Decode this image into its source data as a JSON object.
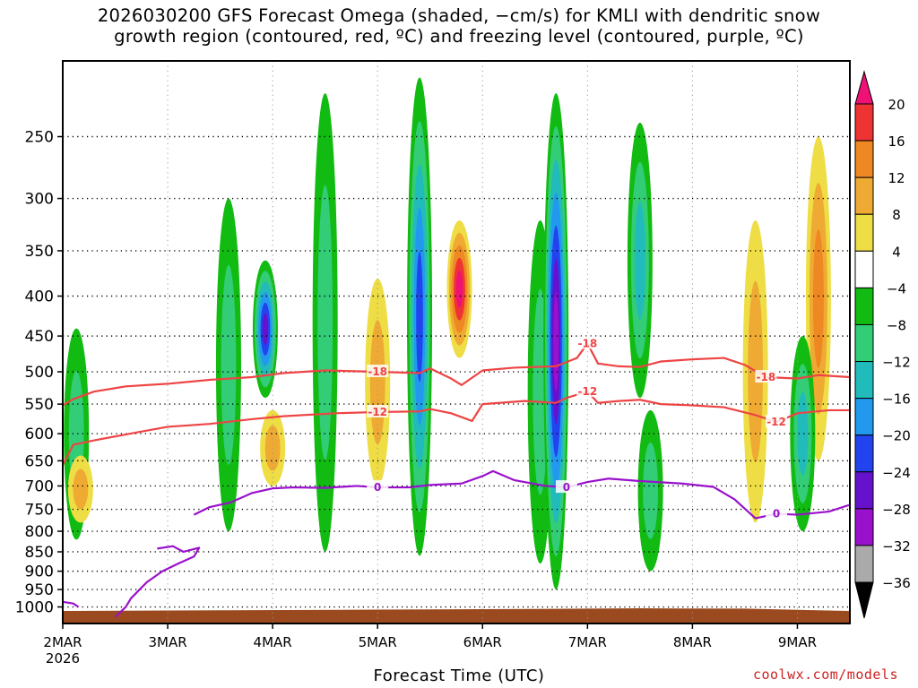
{
  "title_line1": "2026030200 GFS Forecast Omega (shaded, −cm/s) for KMLI with dendritic snow",
  "title_line2": "growth region (contoured, red, ºC) and freezing level (contoured, purple, ºC)",
  "xlabel": "Forecast Time (UTC)",
  "credit": "coolwx.com/models",
  "chart_data": {
    "type": "heatmap",
    "title": "2026030200 GFS Forecast Omega (shaded, −cm/s) for KMLI with dendritic snow growth region (contoured, red, ºC) and freezing level (contoured, purple, ºC)",
    "xlabel": "Forecast Time (UTC)",
    "ylabel": "",
    "x_ticks": [
      "2MAR",
      "3MAR",
      "4MAR",
      "5MAR",
      "6MAR",
      "7MAR",
      "8MAR",
      "9MAR"
    ],
    "x_tick_year": "2026",
    "x_range_days": [
      0,
      7.5
    ],
    "y_ticks": [
      250,
      300,
      350,
      400,
      450,
      500,
      550,
      600,
      650,
      700,
      750,
      800,
      850,
      900,
      950,
      1000
    ],
    "y_range_hpa": [
      1050,
      200
    ],
    "grid": true,
    "colorbar": {
      "labels": [
        "20",
        "16",
        "12",
        "8",
        "4",
        "−4",
        "−8",
        "−12",
        "−16",
        "−20",
        "−24",
        "−28",
        "−32",
        "−36"
      ],
      "colors": [
        "#ee1177",
        "#ee3333",
        "#ee8822",
        "#eeaa33",
        "#eedd44",
        "#ffffff",
        "#11bb11",
        "#33cc77",
        "#22bbbb",
        "#2299ee",
        "#2244ee",
        "#6611cc",
        "#9911cc",
        "#aaaaaa",
        "#000000"
      ]
    },
    "contour_colors": {
      "dgz": "#ee4444",
      "freezing": "#9911cc",
      "terrain": "#9a4a1e"
    },
    "contours": [
      {
        "label": "-18",
        "color": "dgz",
        "points": [
          [
            0,
            552
          ],
          [
            0.1,
            542
          ],
          [
            0.3,
            530
          ],
          [
            0.6,
            522
          ],
          [
            1.0,
            518
          ],
          [
            1.4,
            512
          ],
          [
            1.8,
            508
          ],
          [
            2.1,
            502
          ],
          [
            2.5,
            498
          ],
          [
            3.0,
            500
          ],
          [
            3.4,
            502
          ],
          [
            3.5,
            495
          ],
          [
            3.7,
            510
          ],
          [
            3.8,
            520
          ],
          [
            4.0,
            498
          ],
          [
            4.3,
            494
          ],
          [
            4.7,
            492
          ],
          [
            4.9,
            480
          ],
          [
            5.0,
            460
          ],
          [
            5.1,
            488
          ],
          [
            5.3,
            492
          ],
          [
            5.5,
            493
          ],
          [
            5.7,
            485
          ],
          [
            6.0,
            482
          ],
          [
            6.3,
            480
          ],
          [
            6.5,
            490
          ],
          [
            6.7,
            508
          ],
          [
            7.0,
            510
          ],
          [
            7.2,
            505
          ],
          [
            7.5,
            508
          ]
        ]
      },
      {
        "label": "-12",
        "color": "dgz",
        "points": [
          [
            0,
            658
          ],
          [
            0.1,
            620
          ],
          [
            0.3,
            612
          ],
          [
            0.7,
            598
          ],
          [
            1.0,
            588
          ],
          [
            1.4,
            583
          ],
          [
            1.8,
            575
          ],
          [
            2.1,
            570
          ],
          [
            2.6,
            565
          ],
          [
            3.0,
            563
          ],
          [
            3.4,
            562
          ],
          [
            3.5,
            558
          ],
          [
            3.7,
            565
          ],
          [
            3.9,
            578
          ],
          [
            4.0,
            550
          ],
          [
            4.4,
            545
          ],
          [
            4.7,
            548
          ],
          [
            4.8,
            540
          ],
          [
            5.0,
            530
          ],
          [
            5.1,
            548
          ],
          [
            5.3,
            545
          ],
          [
            5.5,
            543
          ],
          [
            5.7,
            550
          ],
          [
            6.0,
            552
          ],
          [
            6.3,
            555
          ],
          [
            6.6,
            568
          ],
          [
            6.8,
            580
          ],
          [
            7.0,
            565
          ],
          [
            7.3,
            560
          ],
          [
            7.5,
            560
          ]
        ]
      },
      {
        "label": "0",
        "color": "freezing",
        "points": [
          [
            1.25,
            762
          ],
          [
            1.4,
            745
          ],
          [
            1.6,
            735
          ],
          [
            1.8,
            715
          ],
          [
            2.0,
            705
          ],
          [
            2.2,
            703
          ],
          [
            2.5,
            704
          ],
          [
            2.8,
            700
          ],
          [
            3.0,
            703
          ],
          [
            3.3,
            703
          ],
          [
            3.5,
            698
          ],
          [
            3.8,
            695
          ],
          [
            4.0,
            680
          ],
          [
            4.1,
            670
          ],
          [
            4.3,
            688
          ],
          [
            4.6,
            700
          ],
          [
            4.8,
            703
          ],
          [
            5.0,
            692
          ],
          [
            5.2,
            685
          ],
          [
            5.5,
            690
          ],
          [
            5.9,
            695
          ],
          [
            6.2,
            702
          ],
          [
            6.4,
            728
          ],
          [
            6.6,
            770
          ],
          [
            6.8,
            760
          ],
          [
            7.0,
            762
          ],
          [
            7.3,
            755
          ],
          [
            7.5,
            740
          ]
        ]
      },
      {
        "label": "",
        "color": "freezing",
        "points": [
          [
            0.9,
            842
          ],
          [
            1.05,
            836
          ],
          [
            1.15,
            850
          ],
          [
            1.3,
            840
          ],
          [
            1.25,
            862
          ],
          [
            1.1,
            880
          ],
          [
            0.95,
            900
          ],
          [
            0.8,
            930
          ],
          [
            0.65,
            975
          ],
          [
            0.6,
            1000
          ],
          [
            0.5,
            1030
          ]
        ]
      },
      {
        "label": "",
        "color": "freezing",
        "points": [
          [
            0.0,
            985
          ],
          [
            0.1,
            990
          ],
          [
            0.15,
            1000
          ]
        ]
      }
    ],
    "omega_features": [
      {
        "day": 0.13,
        "p_top": 440,
        "p_bot": 820,
        "value": -8
      },
      {
        "day": 0.17,
        "p_top": 640,
        "p_bot": 780,
        "value": 8
      },
      {
        "day": 1.58,
        "p_top": 300,
        "p_bot": 800,
        "value": -10
      },
      {
        "day": 1.93,
        "p_top": 360,
        "p_bot": 540,
        "value": -26
      },
      {
        "day": 2.0,
        "p_top": 560,
        "p_bot": 700,
        "value": 10
      },
      {
        "day": 2.5,
        "p_top": 220,
        "p_bot": 850,
        "value": -8
      },
      {
        "day": 3.0,
        "p_top": 380,
        "p_bot": 700,
        "value": 10
      },
      {
        "day": 3.4,
        "p_top": 210,
        "p_bot": 860,
        "value": -20
      },
      {
        "day": 3.78,
        "p_top": 320,
        "p_bot": 480,
        "value": 20
      },
      {
        "day": 4.55,
        "p_top": 320,
        "p_bot": 880,
        "value": -8
      },
      {
        "day": 4.7,
        "p_top": 220,
        "p_bot": 950,
        "value": -30
      },
      {
        "day": 5.5,
        "p_top": 240,
        "p_bot": 540,
        "value": -14
      },
      {
        "day": 5.6,
        "p_top": 560,
        "p_bot": 900,
        "value": -8
      },
      {
        "day": 6.6,
        "p_top": 320,
        "p_bot": 780,
        "value": 10
      },
      {
        "day": 7.2,
        "p_top": 250,
        "p_bot": 650,
        "value": 12
      },
      {
        "day": 7.05,
        "p_top": 450,
        "p_bot": 800,
        "value": -12
      }
    ]
  }
}
